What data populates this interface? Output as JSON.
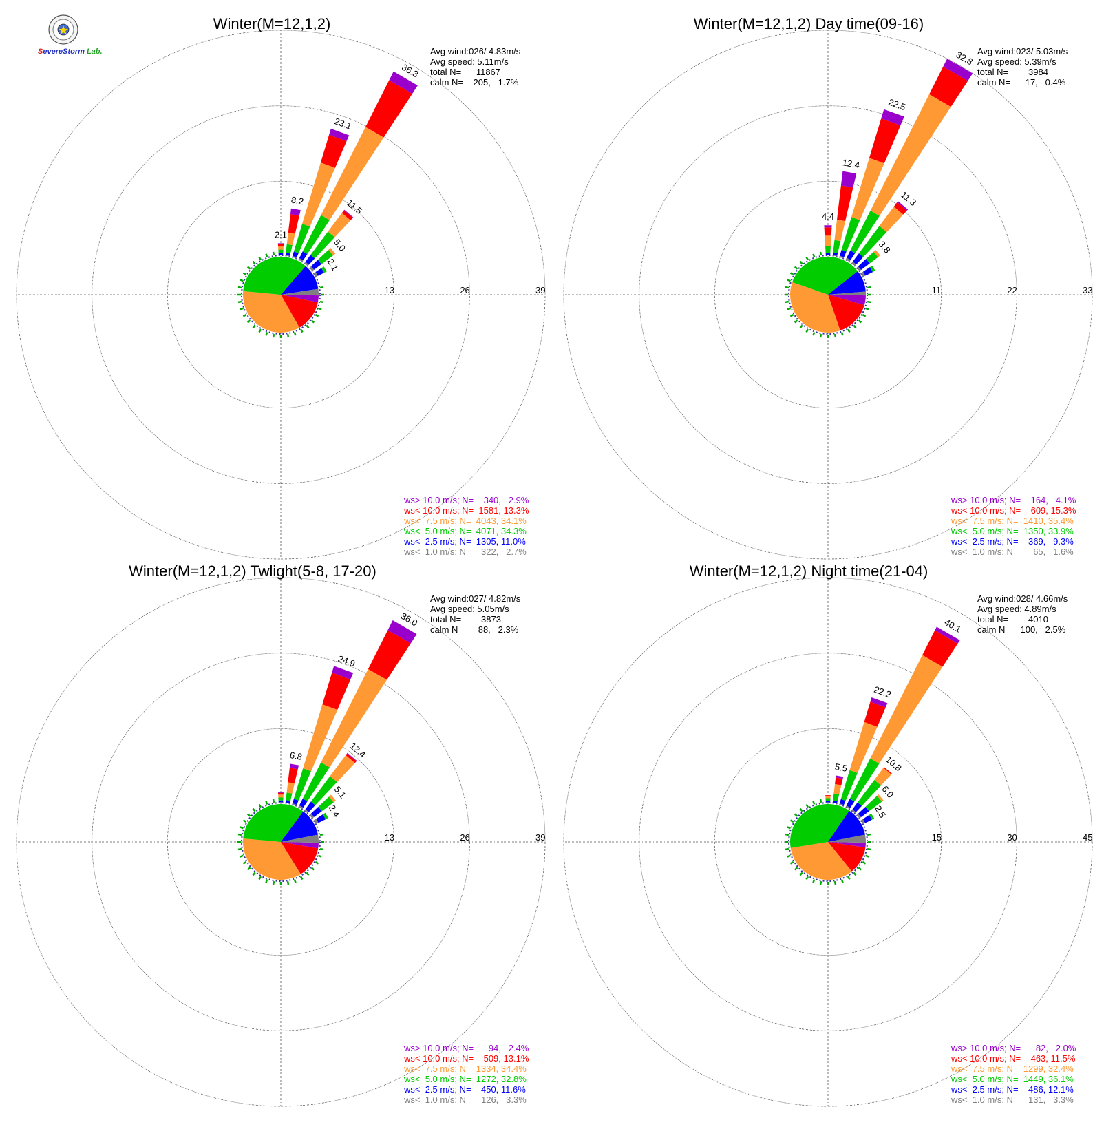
{
  "logo": {
    "letters": [
      "S",
      "evere",
      "S",
      "torm",
      " Lab."
    ],
    "colors": [
      "#e02020",
      "#2030c0",
      "#2030c0",
      "#2030c0",
      "#20a020"
    ]
  },
  "bin_colors": [
    "#808080",
    "#0000ff",
    "#00cc00",
    "#ff9933",
    "#ff0000",
    "#9900cc"
  ],
  "bin_order_note_hidden": "",
  "chart_data": [
    {
      "type": "windrose",
      "title": "Winter(M=12,1,2)",
      "stats": [
        "Avg wind:026/ 4.83m/s",
        "Avg speed: 5.11m/s",
        "total N=      11867",
        "calm N=    205,   1.7%"
      ],
      "ring_labels": [
        "13",
        "26",
        "39"
      ],
      "rmax": 39,
      "direction_labels": [
        {
          "dir": 0,
          "text": "2.1"
        },
        {
          "dir": 10,
          "text": "8.2"
        },
        {
          "dir": 20,
          "text": "23.1"
        },
        {
          "dir": 30,
          "text": "36.3"
        },
        {
          "dir": 40,
          "text": "11.5"
        },
        {
          "dir": 50,
          "text": "5.0"
        },
        {
          "dir": 60,
          "text": "2.1"
        }
      ],
      "directions": [
        0,
        10,
        20,
        30,
        40,
        50,
        60
      ],
      "petals": [
        [
          0.1,
          0.3,
          0.6,
          0.6,
          0.4,
          0.1
        ],
        [
          0.1,
          0.4,
          1.5,
          2.0,
          3.2,
          1.0
        ],
        [
          0.2,
          0.8,
          5.0,
          11.0,
          5.0,
          1.1
        ],
        [
          0.3,
          1.3,
          7.0,
          17.0,
          9.0,
          1.7
        ],
        [
          0.3,
          1.5,
          5.0,
          4.0,
          0.6,
          0.1
        ],
        [
          0.4,
          1.6,
          2.5,
          0.5,
          0.0,
          0.0
        ],
        [
          0.4,
          1.2,
          0.5,
          0.0,
          0.0,
          0.0
        ]
      ],
      "legend": [
        {
          "text": "ws> 10.0 m/s; N=    340,   2.9%",
          "bin": 5
        },
        {
          "text": "ws< 10.0 m/s; N=  1581, 13.3%",
          "bin": 4
        },
        {
          "text": "ws<  7.5 m/s; N=  4043, 34.1%",
          "bin": 3
        },
        {
          "text": "ws<  5.0 m/s; N=  4071, 34.3%",
          "bin": 2
        },
        {
          "text": "ws<  2.5 m/s; N=  1305, 11.0%",
          "bin": 1
        },
        {
          "text": "ws<  1.0 m/s; N=    322,   2.7%",
          "bin": 0
        }
      ]
    },
    {
      "type": "windrose",
      "title": "Winter(M=12,1,2) Day time(09-16)",
      "stats": [
        "Avg wind:023/ 5.03m/s",
        "Avg speed: 5.39m/s",
        "total N=        3984",
        "calm N=      17,   0.4%"
      ],
      "ring_labels": [
        "11",
        "22",
        "33"
      ],
      "rmax": 33,
      "direction_labels": [
        {
          "dir": 0,
          "text": "4.4"
        },
        {
          "dir": 10,
          "text": "12.4"
        },
        {
          "dir": 20,
          "text": "22.5"
        },
        {
          "dir": 30,
          "text": "32.8"
        },
        {
          "dir": 40,
          "text": "11.3"
        },
        {
          "dir": 50,
          "text": "3.8"
        }
      ],
      "directions": [
        0,
        10,
        20,
        30,
        40,
        50,
        60
      ],
      "petals": [
        [
          0.1,
          0.3,
          1.0,
          1.5,
          1.2,
          0.3
        ],
        [
          0.1,
          0.4,
          1.8,
          3.0,
          5.0,
          2.1
        ],
        [
          0.2,
          0.9,
          5.0,
          9.0,
          6.0,
          1.4
        ],
        [
          0.3,
          1.2,
          6.5,
          19.0,
          4.5,
          1.3
        ],
        [
          0.3,
          1.5,
          5.0,
          3.5,
          0.8,
          0.2
        ],
        [
          0.3,
          1.6,
          1.5,
          0.4,
          0.0,
          0.0
        ],
        [
          0.4,
          1.2,
          0.4,
          0.0,
          0.0,
          0.0
        ]
      ],
      "legend": [
        {
          "text": "ws> 10.0 m/s; N=    164,   4.1%",
          "bin": 5
        },
        {
          "text": "ws< 10.0 m/s; N=    609, 15.3%",
          "bin": 4
        },
        {
          "text": "ws<  7.5 m/s; N=  1410, 35.4%",
          "bin": 3
        },
        {
          "text": "ws<  5.0 m/s; N=  1350, 33.9%",
          "bin": 2
        },
        {
          "text": "ws<  2.5 m/s; N=    369,   9.3%",
          "bin": 1
        },
        {
          "text": "ws<  1.0 m/s; N=      65,   1.6%",
          "bin": 0
        }
      ]
    },
    {
      "type": "windrose",
      "title": "Winter(M=12,1,2) Twlight(5-8, 17-20)",
      "stats": [
        "Avg wind:027/ 4.82m/s",
        "Avg speed: 5.05m/s",
        "total N=        3873",
        "calm N=      88,   2.3%"
      ],
      "ring_labels": [
        "13",
        "26",
        "39"
      ],
      "rmax": 39,
      "direction_labels": [
        {
          "dir": 10,
          "text": "6.8"
        },
        {
          "dir": 20,
          "text": "24.9"
        },
        {
          "dir": 30,
          "text": "36.0"
        },
        {
          "dir": 40,
          "text": "12.4"
        },
        {
          "dir": 50,
          "text": "5.1"
        },
        {
          "dir": 60,
          "text": "2.4"
        }
      ],
      "directions": [
        0,
        10,
        20,
        30,
        40,
        50,
        60
      ],
      "petals": [
        [
          0.1,
          0.3,
          0.5,
          0.5,
          0.3,
          0.1
        ],
        [
          0.1,
          0.4,
          1.3,
          1.8,
          2.5,
          0.7
        ],
        [
          0.2,
          0.8,
          5.5,
          11.5,
          5.7,
          1.2
        ],
        [
          0.3,
          1.3,
          7.0,
          18.0,
          7.5,
          1.9
        ],
        [
          0.3,
          1.6,
          5.5,
          4.5,
          0.4,
          0.1
        ],
        [
          0.4,
          1.7,
          2.5,
          0.5,
          0.0,
          0.0
        ],
        [
          0.5,
          1.4,
          0.5,
          0.0,
          0.0,
          0.0
        ]
      ],
      "legend": [
        {
          "text": "ws> 10.0 m/s; N=      94,   2.4%",
          "bin": 5
        },
        {
          "text": "ws< 10.0 m/s; N=    509, 13.1%",
          "bin": 4
        },
        {
          "text": "ws<  7.5 m/s; N=  1334, 34.4%",
          "bin": 3
        },
        {
          "text": "ws<  5.0 m/s; N=  1272, 32.8%",
          "bin": 2
        },
        {
          "text": "ws<  2.5 m/s; N=    450, 11.6%",
          "bin": 1
        },
        {
          "text": "ws<  1.0 m/s; N=    126,   3.3%",
          "bin": 0
        }
      ]
    },
    {
      "type": "windrose",
      "title": "Winter(M=12,1,2) Night time(21-04)",
      "stats": [
        "Avg wind:028/ 4.66m/s",
        "Avg speed: 4.89m/s",
        "total N=        4010",
        "calm N=    100,   2.5%"
      ],
      "ring_labels": [
        "15",
        "30",
        "45"
      ],
      "rmax": 45,
      "direction_labels": [
        {
          "dir": 10,
          "text": "5.5"
        },
        {
          "dir": 20,
          "text": "22.2"
        },
        {
          "dir": 30,
          "text": "40.1"
        },
        {
          "dir": 40,
          "text": "10.8"
        },
        {
          "dir": 50,
          "text": "6.0"
        },
        {
          "dir": 60,
          "text": "2.5"
        }
      ],
      "directions": [
        0,
        10,
        20,
        30,
        40,
        50,
        60
      ],
      "petals": [
        [
          0.1,
          0.3,
          0.5,
          0.4,
          0.2,
          0.0
        ],
        [
          0.1,
          0.4,
          1.4,
          1.9,
          1.3,
          0.4
        ],
        [
          0.2,
          0.9,
          6.0,
          10.0,
          4.2,
          0.9
        ],
        [
          0.3,
          1.5,
          9.0,
          23.0,
          5.5,
          0.8
        ],
        [
          0.3,
          1.7,
          5.6,
          3.0,
          0.2,
          0.0
        ],
        [
          0.4,
          2.0,
          3.2,
          0.4,
          0.0,
          0.0
        ],
        [
          0.5,
          1.5,
          0.5,
          0.0,
          0.0,
          0.0
        ]
      ],
      "legend": [
        {
          "text": "ws> 10.0 m/s; N=      82,   2.0%",
          "bin": 5
        },
        {
          "text": "ws< 10.0 m/s; N=    463, 11.5%",
          "bin": 4
        },
        {
          "text": "ws<  7.5 m/s; N=  1299, 32.4%",
          "bin": 3
        },
        {
          "text": "ws<  5.0 m/s; N=  1449, 36.1%",
          "bin": 2
        },
        {
          "text": "ws<  2.5 m/s; N=    486, 12.1%",
          "bin": 1
        },
        {
          "text": "ws<  1.0 m/s; N=    131,   3.3%",
          "bin": 0
        }
      ]
    }
  ]
}
